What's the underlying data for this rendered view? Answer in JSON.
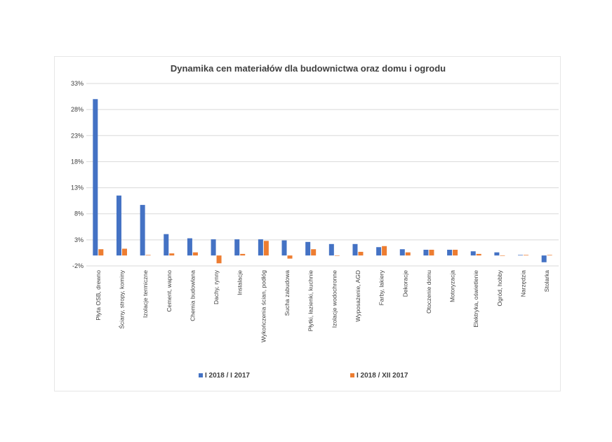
{
  "chart_data": {
    "type": "bar",
    "title": "Dynamika cen materiałów dla budownictwa oraz domu i ogrodu",
    "xlabel": "",
    "ylabel": "",
    "ylim": [
      -2,
      33
    ],
    "yticks": [
      33,
      28,
      23,
      18,
      13,
      8,
      3,
      -2
    ],
    "ytick_labels": [
      "33%",
      "28%",
      "23%",
      "18%",
      "13%",
      "8%",
      "3%",
      "-2%"
    ],
    "grid": true,
    "legend_position": "bottom",
    "categories": [
      "Płyta OSB, drewno",
      "Ściany, stropy, kominy",
      "Izolacje termiczne",
      "Cement, wapno",
      "Chemia budowlana",
      "Dachy, rynny",
      "Instalacje",
      "Wykończenia ścian, podłóg",
      "Sucha zabudowa",
      "Płytki, łazienki, kuchnie",
      "Izolacje wodochronne",
      "Wyposażenie, AGD",
      "Farby, lakiery",
      "Dekoracje",
      "Otoczenie domu",
      "Motoryzacja",
      "Elektryka, oświetlenie",
      "Ogród, hobby",
      "Narzędzia",
      "Stolarka"
    ],
    "series": [
      {
        "name": "I 2018 / I 2017",
        "color": "#4472c4",
        "values": [
          30,
          11.5,
          9.7,
          4.1,
          3.3,
          3.1,
          3.1,
          3.1,
          2.9,
          2.6,
          2.2,
          2.2,
          1.6,
          1.2,
          1.1,
          1.1,
          0.8,
          0.6,
          0.1,
          -1.3
        ]
      },
      {
        "name": "I 2018 / XII 2017",
        "color": "#ed7d31",
        "values": [
          1.2,
          1.3,
          0.1,
          0.4,
          0.6,
          -1.5,
          0.3,
          2.8,
          -0.6,
          1.2,
          0,
          0.7,
          1.8,
          0.6,
          1.1,
          1.1,
          0.3,
          0,
          0.1,
          0.1
        ]
      }
    ]
  }
}
